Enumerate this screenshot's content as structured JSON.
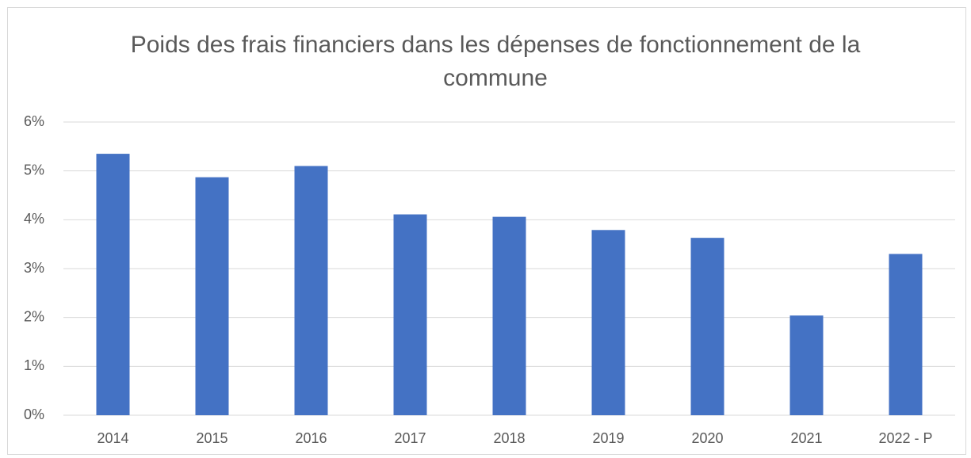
{
  "chart_data": {
    "type": "bar",
    "title": "Poids des frais financiers dans les dépenses de fonctionnement de la commune",
    "categories": [
      "2014",
      "2015",
      "2016",
      "2017",
      "2018",
      "2019",
      "2020",
      "2021",
      "2022 - P"
    ],
    "values": [
      5.35,
      4.87,
      5.1,
      4.11,
      4.06,
      3.79,
      3.63,
      2.04,
      3.3
    ],
    "color": "#4472c4",
    "ylim": [
      0,
      6
    ],
    "yticks": [
      {
        "value": 0,
        "label": "0%"
      },
      {
        "value": 1,
        "label": "1%"
      },
      {
        "value": 2,
        "label": "2%"
      },
      {
        "value": 3,
        "label": "3%"
      },
      {
        "value": 4,
        "label": "4%"
      },
      {
        "value": 5,
        "label": "5%"
      },
      {
        "value": 6,
        "label": "6%"
      }
    ],
    "grid": true
  }
}
